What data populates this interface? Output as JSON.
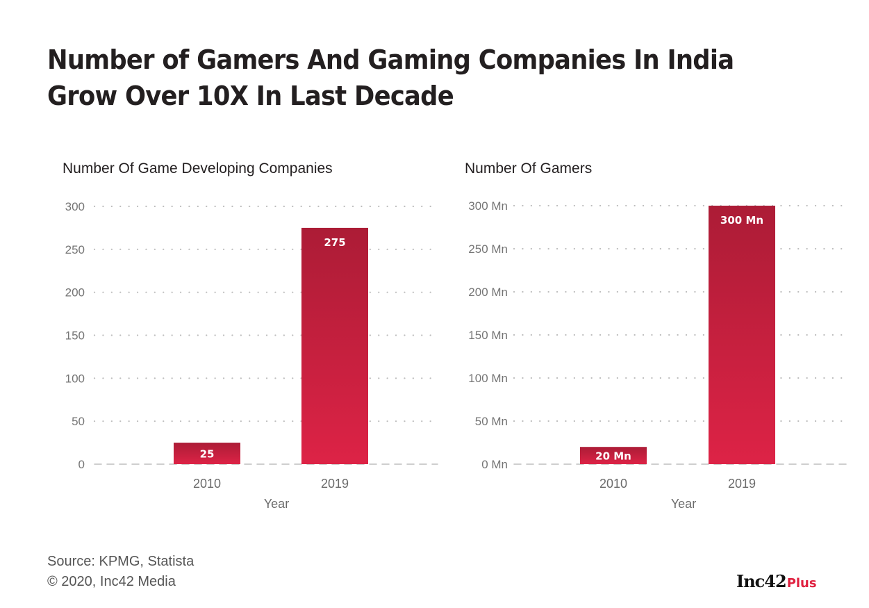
{
  "title": "Number of Gamers And Gaming Companies In India Grow Over 10X In Last Decade",
  "colors": {
    "bar_top": "#ac1c36",
    "bar_bottom": "#dd2346",
    "grid": "#bdbdbd",
    "accent": "#e0203f"
  },
  "chart_data": [
    {
      "type": "bar",
      "title": "Number Of Game Developing Companies",
      "xlabel": "Year",
      "ylabel": "",
      "categories": [
        "2010",
        "2019"
      ],
      "values": [
        25,
        275
      ],
      "data_labels": [
        "25",
        "275"
      ],
      "yticks": [
        0,
        50,
        100,
        150,
        200,
        250,
        300
      ],
      "ytick_labels": [
        "0",
        "50",
        "100",
        "150",
        "200",
        "250",
        "300"
      ],
      "ylim": [
        0,
        300
      ],
      "grid": true,
      "legend": "none"
    },
    {
      "type": "bar",
      "title": "Number Of Gamers",
      "xlabel": "Year",
      "ylabel": "",
      "unit": "Mn",
      "categories": [
        "2010",
        "2019"
      ],
      "values": [
        20,
        300
      ],
      "data_labels": [
        "20 Mn",
        "300 Mn"
      ],
      "yticks": [
        0,
        50,
        100,
        150,
        200,
        250,
        300
      ],
      "ytick_labels": [
        "0 Mn",
        "50 Mn",
        "100 Mn",
        "150 Mn",
        "200 Mn",
        "250 Mn",
        "300 Mn"
      ],
      "ylim": [
        0,
        300
      ],
      "grid": true,
      "legend": "none"
    }
  ],
  "footer": {
    "source": "Source: KPMG, Statista",
    "copyright": "© 2020, Inc42 Media"
  },
  "logo": {
    "main": "Inc42",
    "suffix": "Plus"
  }
}
